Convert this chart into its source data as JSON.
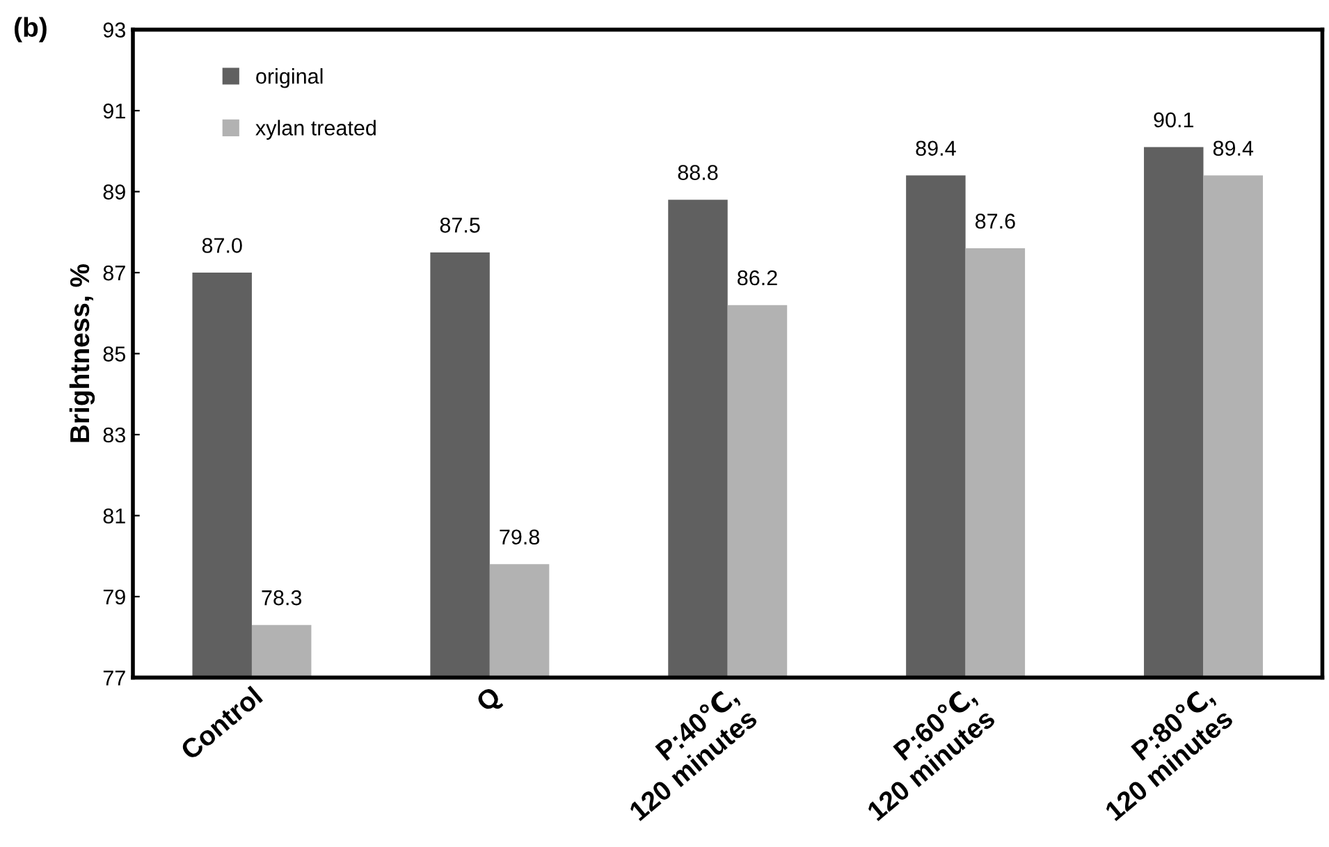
{
  "chart_data": {
    "type": "bar",
    "categories": [
      "Control",
      "Q",
      "P:40℃,\n120 minutes",
      "P:60℃,\n120 minutes",
      "P:80℃,\n120 minutes"
    ],
    "ylabel": "Brightness, %",
    "annotations": [
      "(b)"
    ],
    "series": [
      {
        "name": "original",
        "color": "#606060",
        "values": [
          87.0,
          87.5,
          88.8,
          89.4,
          90.1
        ],
        "value_labels": [
          "87.0",
          "87.5",
          "88.8",
          "89.4",
          "90.1"
        ]
      },
      {
        "name": "xylan treated",
        "color": "#b2b2b2",
        "values": [
          78.3,
          79.8,
          86.2,
          87.6,
          89.4
        ],
        "value_labels": [
          "78.3",
          "79.8",
          "86.2",
          "87.6",
          "89.4"
        ]
      }
    ],
    "ylim": [
      77,
      93
    ],
    "yticks": [
      77,
      79,
      81,
      83,
      85,
      87,
      89,
      91,
      93
    ],
    "grid": false,
    "legend": "top left"
  }
}
